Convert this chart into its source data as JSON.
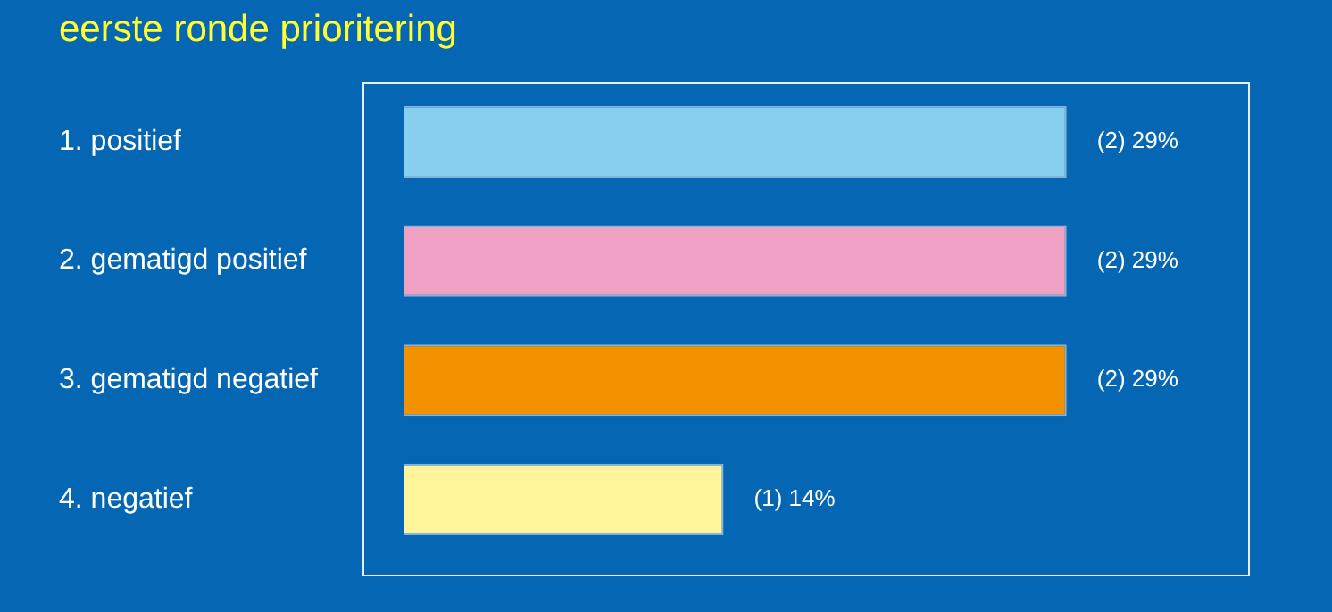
{
  "chart_data": {
    "type": "bar",
    "orientation": "horizontal",
    "title": "eerste ronde prioritering",
    "categories": [
      "1. positief",
      "2. gematigd positief",
      "3. gematigd negatief",
      "4. negatief"
    ],
    "values": [
      29,
      29,
      29,
      14
    ],
    "colors": [
      "#87cfee",
      "#f0a0c2",
      "#f39200",
      "#fff59b"
    ],
    "value_labels": [
      "(2) 29%",
      "(2) 29%",
      "(2) 29%",
      "(1) 14%"
    ],
    "grid": false,
    "legend": false
  }
}
